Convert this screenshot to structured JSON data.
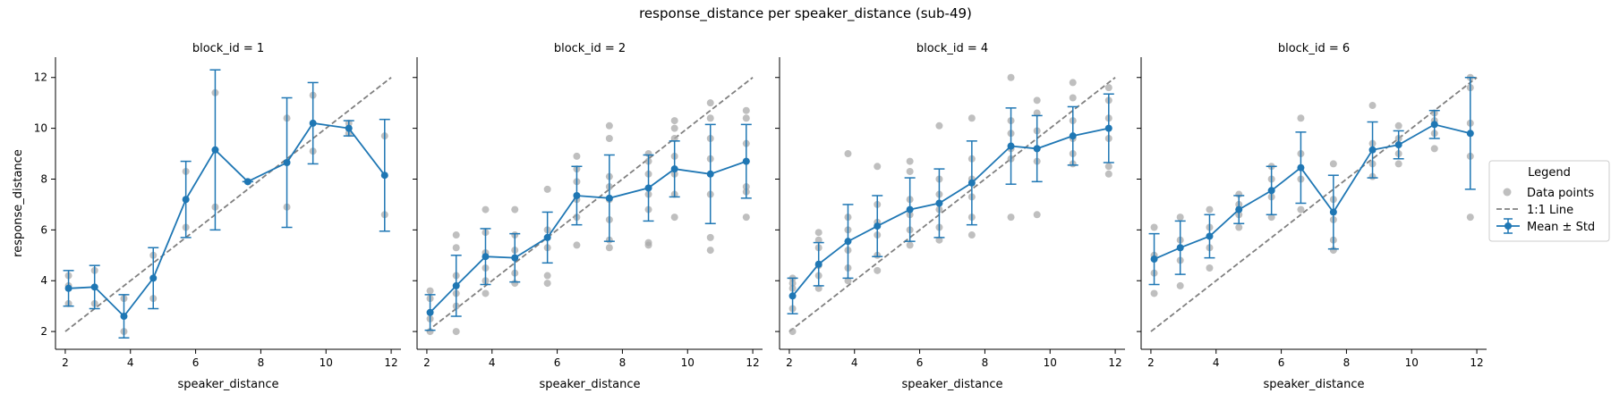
{
  "figure_title": "response_distance per speaker_distance (sub-49)",
  "colors": {
    "points": "#a9a9a9",
    "mean": "#1f77b4",
    "identity": "#808080"
  },
  "legend": {
    "title": "Legend",
    "items": [
      {
        "label": "Data points",
        "marker": "circle"
      },
      {
        "label": "1:1 Line",
        "marker": "dashed-line"
      },
      {
        "label": "Mean ± Std",
        "marker": "errorbar-line"
      }
    ]
  },
  "chart_data": [
    {
      "type": "line",
      "title": "block_id = 1",
      "xlabel": "speaker_distance",
      "ylabel": "response_distance",
      "xlim": [
        1.7,
        12.3
      ],
      "ylim": [
        1.3,
        12.8
      ],
      "xticks": [
        2,
        4,
        6,
        8,
        10,
        12
      ],
      "yticks": [
        2,
        4,
        6,
        8,
        10,
        12
      ],
      "identity_line": [
        [
          2,
          2
        ],
        [
          12,
          12
        ]
      ],
      "mean": [
        {
          "x": 2.1,
          "y": 3.7,
          "std": 0.7
        },
        {
          "x": 2.9,
          "y": 3.75,
          "std": 0.85
        },
        {
          "x": 3.8,
          "y": 2.6,
          "std": 0.85
        },
        {
          "x": 4.7,
          "y": 4.1,
          "std": 1.2
        },
        {
          "x": 5.7,
          "y": 7.2,
          "std": 1.5
        },
        {
          "x": 6.6,
          "y": 9.15,
          "std": 3.15
        },
        {
          "x": 7.6,
          "y": 7.9,
          "std": 0
        },
        {
          "x": 8.8,
          "y": 8.65,
          "std": 2.55
        },
        {
          "x": 9.6,
          "y": 10.2,
          "std": 1.6
        },
        {
          "x": 10.7,
          "y": 10.0,
          "std": 0.3
        },
        {
          "x": 11.8,
          "y": 8.15,
          "std": 2.2
        }
      ],
      "points": [
        [
          2.1,
          4.2
        ],
        [
          2.1,
          3.1
        ],
        [
          2.1,
          3.8
        ],
        [
          2.9,
          4.4
        ],
        [
          2.9,
          3.1
        ],
        [
          3.8,
          3.3
        ],
        [
          3.8,
          2.0
        ],
        [
          4.7,
          5.0
        ],
        [
          4.7,
          3.3
        ],
        [
          5.7,
          8.3
        ],
        [
          5.7,
          6.1
        ],
        [
          6.6,
          11.4
        ],
        [
          6.6,
          6.9
        ],
        [
          7.6,
          7.9
        ],
        [
          8.8,
          10.4
        ],
        [
          8.8,
          6.9
        ],
        [
          9.6,
          11.3
        ],
        [
          9.6,
          9.1
        ],
        [
          10.7,
          10.2
        ],
        [
          10.7,
          9.8
        ],
        [
          11.8,
          9.7
        ],
        [
          11.8,
          6.6
        ]
      ]
    },
    {
      "type": "line",
      "title": "block_id = 2",
      "xlabel": "speaker_distance",
      "ylabel": "",
      "xlim": [
        1.7,
        12.3
      ],
      "ylim": [
        1.3,
        12.8
      ],
      "xticks": [
        2,
        4,
        6,
        8,
        10,
        12
      ],
      "yticks": [
        2,
        4,
        6,
        8,
        10,
        12
      ],
      "identity_line": [
        [
          2,
          2
        ],
        [
          12,
          12
        ]
      ],
      "mean": [
        {
          "x": 2.1,
          "y": 2.75,
          "std": 0.7
        },
        {
          "x": 2.9,
          "y": 3.8,
          "std": 1.2
        },
        {
          "x": 3.8,
          "y": 4.95,
          "std": 1.1
        },
        {
          "x": 4.7,
          "y": 4.9,
          "std": 0.95
        },
        {
          "x": 5.7,
          "y": 5.7,
          "std": 1.0
        },
        {
          "x": 6.6,
          "y": 7.35,
          "std": 1.15
        },
        {
          "x": 7.6,
          "y": 7.25,
          "std": 1.7
        },
        {
          "x": 8.8,
          "y": 7.65,
          "std": 1.3
        },
        {
          "x": 9.6,
          "y": 8.4,
          "std": 1.1
        },
        {
          "x": 10.7,
          "y": 8.2,
          "std": 1.95
        },
        {
          "x": 11.8,
          "y": 8.7,
          "std": 1.45
        }
      ],
      "points": [
        [
          2.1,
          3.6
        ],
        [
          2.1,
          2.0
        ],
        [
          2.1,
          2.5
        ],
        [
          2.1,
          3.3
        ],
        [
          2.9,
          5.8
        ],
        [
          2.9,
          2.0
        ],
        [
          2.9,
          3.5
        ],
        [
          2.9,
          4.2
        ],
        [
          2.9,
          5.3
        ],
        [
          2.9,
          3.0
        ],
        [
          3.8,
          6.8
        ],
        [
          3.8,
          3.5
        ],
        [
          3.8,
          4.0
        ],
        [
          3.8,
          5.1
        ],
        [
          3.8,
          5.9
        ],
        [
          3.8,
          4.5
        ],
        [
          4.7,
          6.8
        ],
        [
          4.7,
          3.9
        ],
        [
          4.7,
          4.3
        ],
        [
          4.7,
          5.2
        ],
        [
          4.7,
          5.8
        ],
        [
          5.7,
          7.6
        ],
        [
          5.7,
          3.9
        ],
        [
          5.7,
          4.2
        ],
        [
          5.7,
          5.3
        ],
        [
          5.7,
          6.0
        ],
        [
          6.6,
          8.9
        ],
        [
          6.6,
          5.4
        ],
        [
          6.6,
          6.5
        ],
        [
          6.6,
          7.2
        ],
        [
          6.6,
          7.9
        ],
        [
          6.6,
          8.4
        ],
        [
          7.6,
          10.1
        ],
        [
          7.6,
          5.3
        ],
        [
          7.6,
          5.6
        ],
        [
          7.6,
          6.4
        ],
        [
          7.6,
          7.7
        ],
        [
          7.6,
          8.1
        ],
        [
          7.6,
          9.6
        ],
        [
          7.6,
          7.2
        ],
        [
          8.8,
          9.0
        ],
        [
          8.8,
          5.4
        ],
        [
          8.8,
          5.5
        ],
        [
          8.8,
          6.8
        ],
        [
          8.8,
          7.4
        ],
        [
          8.8,
          8.2
        ],
        [
          8.8,
          8.7
        ],
        [
          9.6,
          10.3
        ],
        [
          9.6,
          6.5
        ],
        [
          9.6,
          7.4
        ],
        [
          9.6,
          8.2
        ],
        [
          9.6,
          8.9
        ],
        [
          9.6,
          9.6
        ],
        [
          9.6,
          10.0
        ],
        [
          10.7,
          11.0
        ],
        [
          10.7,
          5.2
        ],
        [
          10.7,
          5.7
        ],
        [
          10.7,
          7.4
        ],
        [
          10.7,
          8.8
        ],
        [
          10.7,
          9.6
        ],
        [
          10.7,
          10.4
        ],
        [
          11.8,
          10.7
        ],
        [
          11.8,
          6.5
        ],
        [
          11.8,
          7.5
        ],
        [
          11.8,
          8.7
        ],
        [
          11.8,
          9.4
        ],
        [
          11.8,
          10.4
        ],
        [
          11.8,
          7.7
        ]
      ]
    },
    {
      "type": "line",
      "title": "block_id = 4",
      "xlabel": "speaker_distance",
      "ylabel": "",
      "xlim": [
        1.7,
        12.3
      ],
      "ylim": [
        1.3,
        12.8
      ],
      "xticks": [
        2,
        4,
        6,
        8,
        10,
        12
      ],
      "yticks": [
        2,
        4,
        6,
        8,
        10,
        12
      ],
      "identity_line": [
        [
          2,
          2
        ],
        [
          12,
          12
        ]
      ],
      "mean": [
        {
          "x": 2.1,
          "y": 3.4,
          "std": 0.7
        },
        {
          "x": 2.9,
          "y": 4.65,
          "std": 0.85
        },
        {
          "x": 3.8,
          "y": 5.55,
          "std": 1.45
        },
        {
          "x": 4.7,
          "y": 6.15,
          "std": 1.2
        },
        {
          "x": 5.7,
          "y": 6.8,
          "std": 1.25
        },
        {
          "x": 6.6,
          "y": 7.05,
          "std": 1.35
        },
        {
          "x": 7.6,
          "y": 7.85,
          "std": 1.65
        },
        {
          "x": 8.8,
          "y": 9.3,
          "std": 1.5
        },
        {
          "x": 9.6,
          "y": 9.2,
          "std": 1.3
        },
        {
          "x": 10.7,
          "y": 9.7,
          "std": 1.15
        },
        {
          "x": 11.8,
          "y": 10.0,
          "std": 1.35
        }
      ],
      "points": [
        [
          2.1,
          4.1
        ],
        [
          2.1,
          2.0
        ],
        [
          2.1,
          2.9
        ],
        [
          2.1,
          3.7
        ],
        [
          2.1,
          3.9
        ],
        [
          2.9,
          5.9
        ],
        [
          2.9,
          3.7
        ],
        [
          2.9,
          4.2
        ],
        [
          2.9,
          4.6
        ],
        [
          2.9,
          5.3
        ],
        [
          2.9,
          5.6
        ],
        [
          3.8,
          9.0
        ],
        [
          3.8,
          4.0
        ],
        [
          3.8,
          4.5
        ],
        [
          3.8,
          5.2
        ],
        [
          3.8,
          6.0
        ],
        [
          3.8,
          6.5
        ],
        [
          4.7,
          8.5
        ],
        [
          4.7,
          4.4
        ],
        [
          4.7,
          5.0
        ],
        [
          4.7,
          5.8
        ],
        [
          4.7,
          6.3
        ],
        [
          4.7,
          7.0
        ],
        [
          5.7,
          8.7
        ],
        [
          5.7,
          5.4
        ],
        [
          5.7,
          6.0
        ],
        [
          5.7,
          6.6
        ],
        [
          5.7,
          7.2
        ],
        [
          5.7,
          8.3
        ],
        [
          6.6,
          10.1
        ],
        [
          6.6,
          5.6
        ],
        [
          6.6,
          6.1
        ],
        [
          6.6,
          6.8
        ],
        [
          6.6,
          7.4
        ],
        [
          6.6,
          8.0
        ],
        [
          7.6,
          10.4
        ],
        [
          7.6,
          5.8
        ],
        [
          7.6,
          6.5
        ],
        [
          7.6,
          7.3
        ],
        [
          7.6,
          8.0
        ],
        [
          7.6,
          8.8
        ],
        [
          8.8,
          12.0
        ],
        [
          8.8,
          6.5
        ],
        [
          8.8,
          8.8
        ],
        [
          8.8,
          9.2
        ],
        [
          8.8,
          9.8
        ],
        [
          8.8,
          10.3
        ],
        [
          9.6,
          11.1
        ],
        [
          9.6,
          6.6
        ],
        [
          9.6,
          8.7
        ],
        [
          9.6,
          9.2
        ],
        [
          9.6,
          9.9
        ],
        [
          9.6,
          10.6
        ],
        [
          10.7,
          11.8
        ],
        [
          10.7,
          8.6
        ],
        [
          10.7,
          9.0
        ],
        [
          10.7,
          9.6
        ],
        [
          10.7,
          10.3
        ],
        [
          10.7,
          11.2
        ],
        [
          11.8,
          11.6
        ],
        [
          11.8,
          8.2
        ],
        [
          11.8,
          8.5
        ],
        [
          11.8,
          9.6
        ],
        [
          11.8,
          10.4
        ],
        [
          11.8,
          11.1
        ]
      ]
    },
    {
      "type": "line",
      "title": "block_id = 6",
      "xlabel": "speaker_distance",
      "ylabel": "",
      "xlim": [
        1.7,
        12.3
      ],
      "ylim": [
        1.3,
        12.8
      ],
      "xticks": [
        2,
        4,
        6,
        8,
        10,
        12
      ],
      "yticks": [
        2,
        4,
        6,
        8,
        10,
        12
      ],
      "identity_line": [
        [
          2,
          2
        ],
        [
          12,
          12
        ]
      ],
      "mean": [
        {
          "x": 2.1,
          "y": 4.85,
          "std": 1.0
        },
        {
          "x": 2.9,
          "y": 5.3,
          "std": 1.05
        },
        {
          "x": 3.8,
          "y": 5.75,
          "std": 0.85
        },
        {
          "x": 4.7,
          "y": 6.8,
          "std": 0.55
        },
        {
          "x": 5.7,
          "y": 7.55,
          "std": 0.95
        },
        {
          "x": 6.6,
          "y": 8.45,
          "std": 1.4
        },
        {
          "x": 7.6,
          "y": 6.7,
          "std": 1.45
        },
        {
          "x": 8.8,
          "y": 9.15,
          "std": 1.1
        },
        {
          "x": 9.6,
          "y": 9.35,
          "std": 0.55
        },
        {
          "x": 10.7,
          "y": 10.15,
          "std": 0.55
        },
        {
          "x": 11.8,
          "y": 9.8,
          "std": 2.2
        }
      ],
      "points": [
        [
          2.1,
          6.1
        ],
        [
          2.1,
          3.5
        ],
        [
          2.1,
          4.3
        ],
        [
          2.1,
          5.0
        ],
        [
          2.9,
          6.5
        ],
        [
          2.9,
          3.8
        ],
        [
          2.9,
          4.8
        ],
        [
          2.9,
          5.6
        ],
        [
          3.8,
          6.8
        ],
        [
          3.8,
          4.5
        ],
        [
          3.8,
          5.3
        ],
        [
          3.8,
          6.1
        ],
        [
          4.7,
          7.4
        ],
        [
          4.7,
          6.1
        ],
        [
          4.7,
          6.6
        ],
        [
          4.7,
          7.0
        ],
        [
          5.7,
          8.5
        ],
        [
          5.7,
          6.5
        ],
        [
          5.7,
          7.3
        ],
        [
          5.7,
          8.0
        ],
        [
          6.6,
          10.4
        ],
        [
          6.6,
          6.8
        ],
        [
          6.6,
          8.0
        ],
        [
          6.6,
          9.0
        ],
        [
          7.6,
          8.6
        ],
        [
          7.6,
          5.2
        ],
        [
          7.6,
          5.6
        ],
        [
          7.6,
          6.4
        ],
        [
          7.6,
          7.2
        ],
        [
          8.8,
          10.9
        ],
        [
          8.8,
          8.1
        ],
        [
          8.8,
          8.6
        ],
        [
          8.8,
          9.4
        ],
        [
          9.6,
          10.1
        ],
        [
          9.6,
          8.6
        ],
        [
          9.6,
          9.0
        ],
        [
          9.6,
          9.6
        ],
        [
          10.7,
          10.6
        ],
        [
          10.7,
          9.2
        ],
        [
          10.7,
          9.8
        ],
        [
          10.7,
          10.3
        ],
        [
          11.8,
          12.0
        ],
        [
          11.8,
          6.5
        ],
        [
          11.8,
          8.9
        ],
        [
          11.8,
          10.2
        ],
        [
          11.8,
          11.6
        ]
      ]
    }
  ]
}
